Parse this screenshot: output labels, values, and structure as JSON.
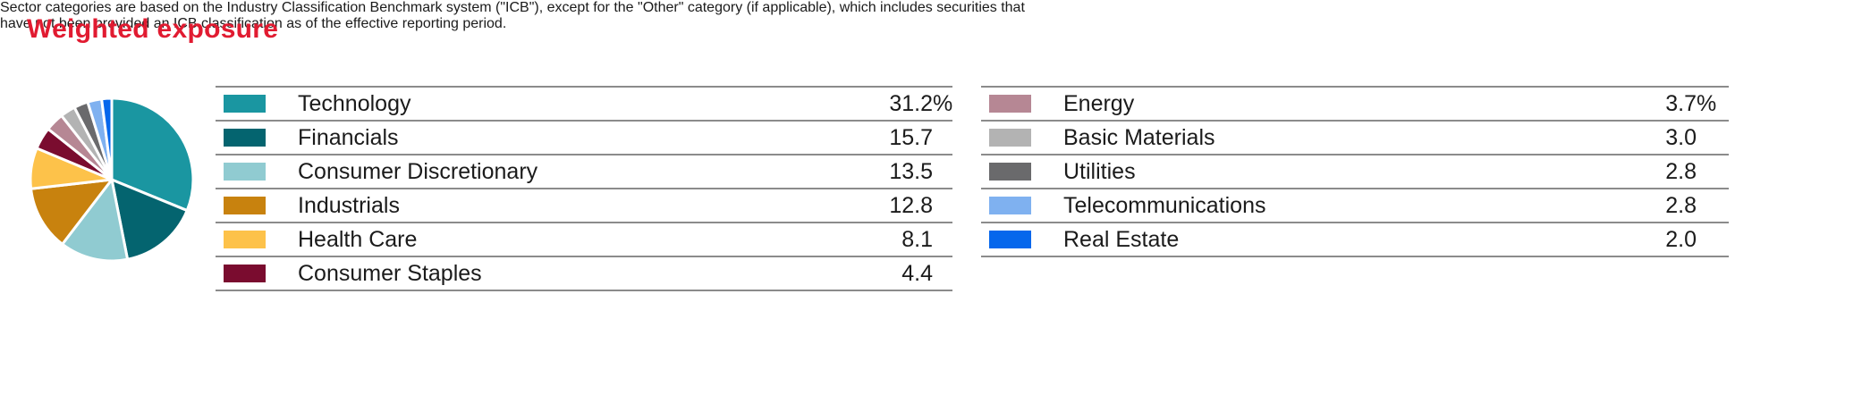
{
  "title": "Weighted exposure",
  "accent_color": "#e11b31",
  "table_border_color": "#8b8b8b",
  "chart_data": {
    "type": "pie",
    "title": "Weighted exposure",
    "unit": "%",
    "start_angle": "top",
    "direction": "clockwise",
    "slice_gap_color": "#ffffff",
    "legend_position": "right-tables",
    "categories": [
      "Technology",
      "Financials",
      "Consumer Discretionary",
      "Industrials",
      "Health Care",
      "Consumer Staples",
      "Energy",
      "Basic Materials",
      "Utilities",
      "Telecommunications",
      "Real Estate"
    ],
    "values": [
      31.2,
      15.7,
      13.5,
      12.8,
      8.1,
      4.4,
      3.7,
      3.0,
      2.8,
      2.8,
      2.0
    ],
    "colors": [
      "#1a96a1",
      "#04646f",
      "#90cbd1",
      "#c8820e",
      "#fdc24a",
      "#7a0c2f",
      "#b68794",
      "#b3b3b3",
      "#6a6a6c",
      "#7fb1f0",
      "#0667ec"
    ]
  },
  "legend_tables": [
    {
      "rows": [
        {
          "label": "Technology",
          "value": "31.2",
          "suffix": "%",
          "color": "#1a96a1"
        },
        {
          "label": "Financials",
          "value": "15.7",
          "suffix": "",
          "color": "#04646f"
        },
        {
          "label": "Consumer Discretionary",
          "value": "13.5",
          "suffix": "",
          "color": "#90cbd1"
        },
        {
          "label": "Industrials",
          "value": "12.8",
          "suffix": "",
          "color": "#c8820e"
        },
        {
          "label": "Health Care",
          "value": "8.1",
          "suffix": "",
          "color": "#fdc24a"
        },
        {
          "label": "Consumer Staples",
          "value": "4.4",
          "suffix": "",
          "color": "#7a0c2f"
        }
      ]
    },
    {
      "rows": [
        {
          "label": "Energy",
          "value": "3.7",
          "suffix": "%",
          "color": "#b68794"
        },
        {
          "label": "Basic Materials",
          "value": "3.0",
          "suffix": "",
          "color": "#b3b3b3"
        },
        {
          "label": "Utilities",
          "value": "2.8",
          "suffix": "",
          "color": "#6a6a6c"
        },
        {
          "label": "Telecommunications",
          "value": "2.8",
          "suffix": "",
          "color": "#7fb1f0"
        },
        {
          "label": "Real Estate",
          "value": "2.0",
          "suffix": "",
          "color": "#0667ec"
        }
      ]
    }
  ],
  "footnote_lines": [
    "Sector categories are based on the Industry Classification Benchmark system (\"ICB\"), except for the \"Other\" category (if applicable), which includes securities that",
    "have not been provided an ICB classification as of the effective reporting period."
  ]
}
